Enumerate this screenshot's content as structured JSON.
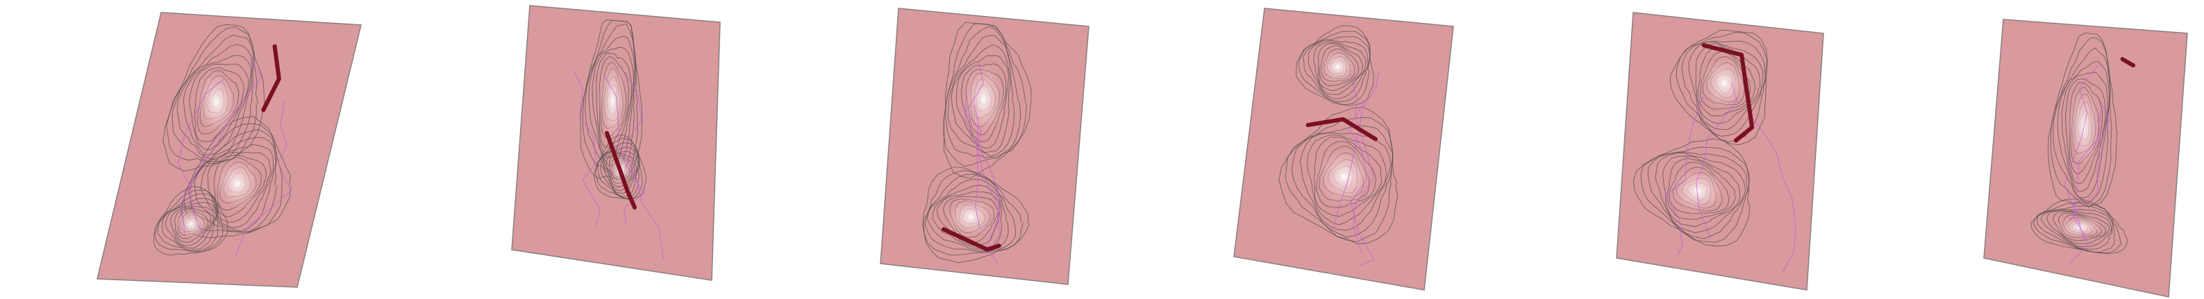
{
  "colors": {
    "background": "#ffffff",
    "plane": "#d89a9d",
    "plane_edge": "#8a7f80",
    "contour": "#4f4a4c",
    "trace": "#c85fd6",
    "ridge": "#7a1020",
    "highlight": "#ffffff"
  },
  "icons": [
    "terrain-plane-icon",
    "contour-lines-icon",
    "ridge-edge-icon",
    "highlight-glow-icon"
  ],
  "panels": [
    {
      "name": "terrain-panel-1",
      "seed": 11
    },
    {
      "name": "terrain-panel-2",
      "seed": 23
    },
    {
      "name": "terrain-panel-3",
      "seed": 37
    },
    {
      "name": "terrain-panel-4",
      "seed": 41
    },
    {
      "name": "terrain-panel-5",
      "seed": 53
    },
    {
      "name": "terrain-panel-6",
      "seed": 67
    }
  ]
}
